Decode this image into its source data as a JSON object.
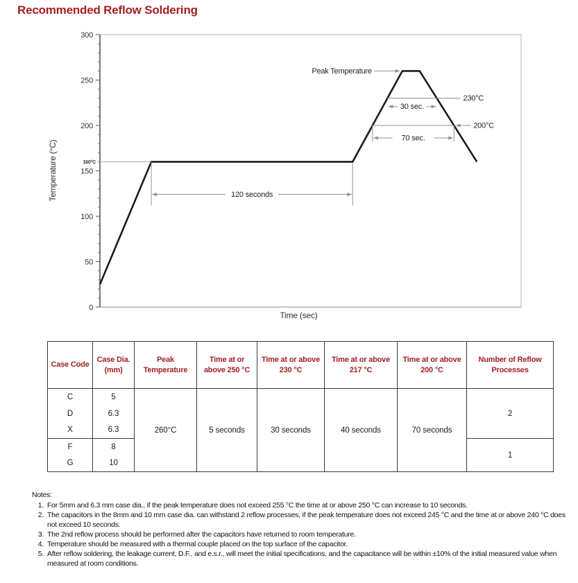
{
  "page": {
    "title": "Recommended Reflow Soldering"
  },
  "colors": {
    "accent": "#a32024",
    "profile_line": "#1b1b1b",
    "annotation_line": "#909090"
  },
  "chart_data": {
    "type": "line",
    "title": "",
    "xlabel": "Time (sec)",
    "ylabel": "Temperature (°C)",
    "ylim": [
      0,
      300
    ],
    "y_major_ticks": [
      0,
      50,
      100,
      150,
      200,
      250,
      300
    ],
    "y_minor_tick_step": 10,
    "grid": false,
    "legend": "none",
    "series": [
      {
        "name": "reflow-temperature-profile",
        "points": [
          {
            "x_frac": 0.0,
            "temp_c": 25
          },
          {
            "x_frac": 0.122,
            "temp_c": 160
          },
          {
            "x_frac": 0.6,
            "temp_c": 160
          },
          {
            "x_frac": 0.718,
            "temp_c": 260
          },
          {
            "x_frac": 0.759,
            "temp_c": 260
          },
          {
            "x_frac": 0.895,
            "temp_c": 160
          }
        ]
      }
    ],
    "annotations": {
      "peak": {
        "label": "Peak Temperature",
        "temp_c": 260
      },
      "preheat_ref": {
        "label": "160°C",
        "temp_c": 160
      },
      "preheat_dim": {
        "label": "120 seconds",
        "seconds": 120
      },
      "levels": [
        {
          "temp_c": 230,
          "label": "230°C",
          "dim_label": "30 sec.",
          "seconds": 30
        },
        {
          "temp_c": 200,
          "label": "200°C",
          "dim_label": "70 sec.",
          "seconds": 70
        }
      ]
    }
  },
  "table": {
    "headers": [
      "Case Code",
      "Case Dia. (mm)",
      "Peak Temperature",
      "Time at or above 250 °C",
      "Time at or above 230 °C",
      "Time at or above 217 °C",
      "Time at or above 200 °C",
      "Number of Reflow Processes"
    ],
    "rows": [
      {
        "case": "C",
        "dia": "5"
      },
      {
        "case": "D",
        "dia": "6.3"
      },
      {
        "case": "X",
        "dia": "6.3"
      },
      {
        "case": "F",
        "dia": "8"
      },
      {
        "case": "G",
        "dia": "10"
      }
    ],
    "merged": {
      "peak": "260°C",
      "t250": "5 seconds",
      "t230": "30 seconds",
      "t217": "40 seconds",
      "t200": "70 seconds"
    },
    "reflow": [
      {
        "value": "2"
      },
      {
        "value": "1"
      }
    ]
  },
  "notes": {
    "title": "Notes:",
    "items": [
      {
        "num": "1.",
        "text": "For 5mm and 6.3 mm case dia., if the peak temperature does not exceed 255 °C the time at or above 250 °C can increase to 10 seconds."
      },
      {
        "num": "2.",
        "text": "The capacitors in the 8mm and 10 mm case dia. can withstand 2 reflow processes, if the peak temperature does not exceed 245 °C and the time at or above 240 °C does not exceed 10 seconds."
      },
      {
        "num": "3.",
        "text": "The 2nd reflow process should be performed after the capacitors have returned to room temperature."
      },
      {
        "num": "4.",
        "text": "Temperature should be measured with a thermal couple placed on the top surface of the capacitor."
      },
      {
        "num": "5.",
        "text": "After reflow soldering, the leakage current, D.F., and e.s.r., will meet the initial specifications, and the capacitance will be within ±10% of the initial measured value when measured at room conditions."
      }
    ]
  }
}
